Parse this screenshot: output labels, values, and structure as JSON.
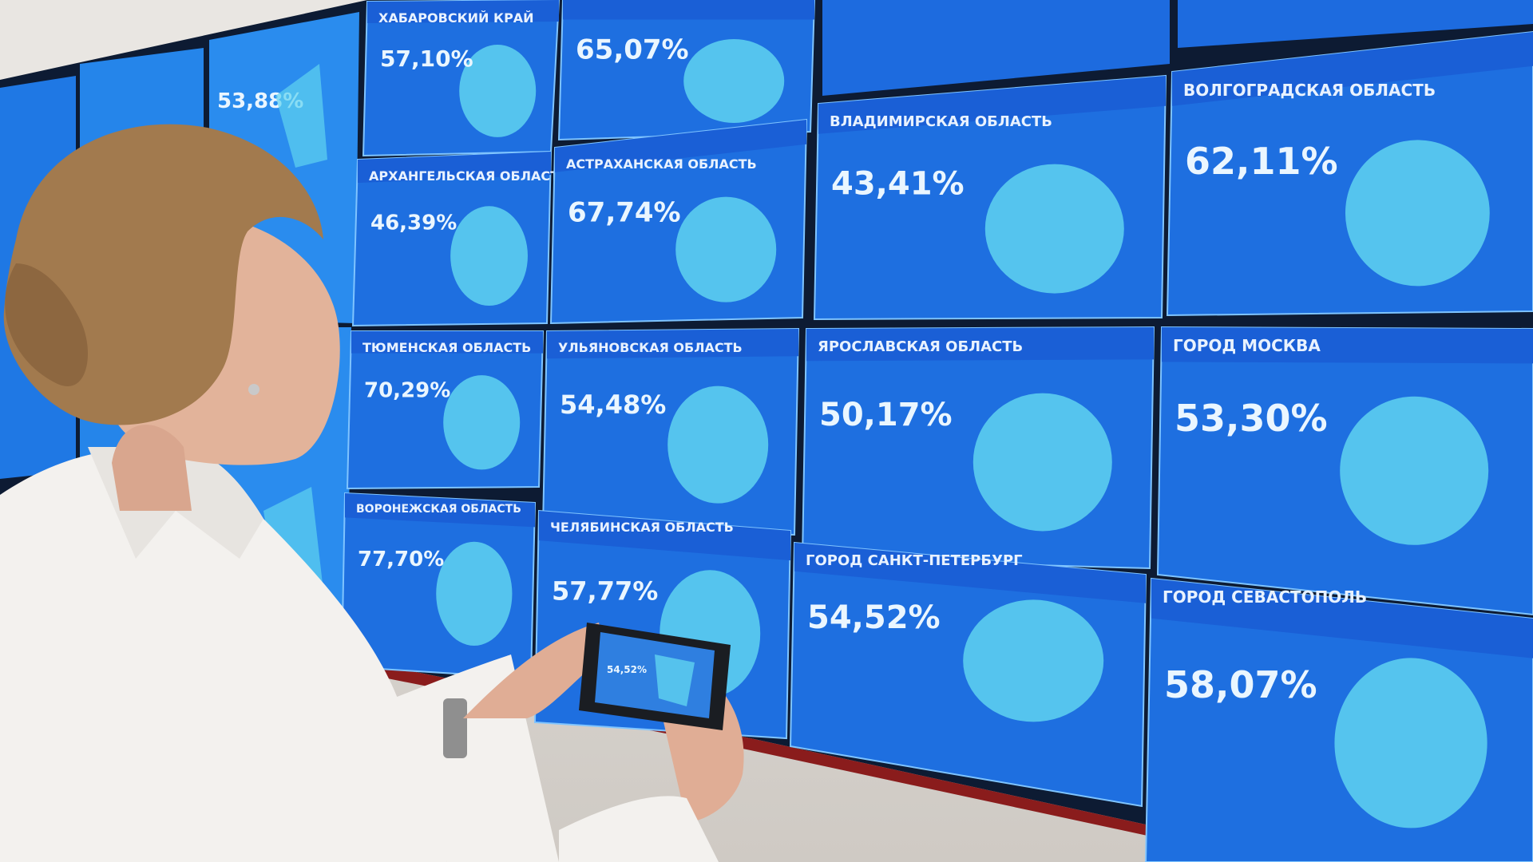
{
  "colors": {
    "screen": "#1e6fe0",
    "screen_header": "#1a5fd6",
    "map_fill": "#5fd3f0",
    "bezel": "#0d1b33",
    "wall_stripe": "#8a1c1c",
    "shirt": "#f3f1ee",
    "hair": "#a27a4e",
    "skin": "#e2b39a"
  },
  "panels": [
    {
      "title": "ХАБАРОВСКИЙ КРАЙ",
      "value": "57,10%"
    },
    {
      "title": "",
      "value": "65,07%"
    },
    {
      "title": "АРХАНГЕЛЬСКАЯ ОБЛАСТЬ",
      "value": "46,39%"
    },
    {
      "title": "АСТРАХАНСКАЯ ОБЛАСТЬ",
      "value": "67,74%"
    },
    {
      "title": "ВЛАДИМИРСКАЯ ОБЛАСТЬ",
      "value": "43,41%"
    },
    {
      "title": "ВОЛГОГРАДСКАЯ ОБЛАСТЬ",
      "value": "62,11%"
    },
    {
      "title": "ТЮМЕНСКАЯ ОБЛАСТЬ",
      "value": "70,29%"
    },
    {
      "title": "УЛЬЯНОВСКАЯ ОБЛАСТЬ",
      "value": "54,48%"
    },
    {
      "title": "ЯРОСЛАВСКАЯ ОБЛАСТЬ",
      "value": "50,17%"
    },
    {
      "title": "ГОРОД МОСКВА",
      "value": "53,30%"
    },
    {
      "title": "ВОРОНЕЖСКАЯ ОБЛАСТЬ",
      "value": "77,70%"
    },
    {
      "title": "ЧЕЛЯБИНСКАЯ ОБЛАСТЬ",
      "value": "57,77%"
    },
    {
      "title": "ГОРОД САНКТ-ПЕТЕРБУРГ",
      "value": "54,52%"
    },
    {
      "title": "ГОРОД СЕВАСТОПОЛЬ",
      "value": "58,07%"
    }
  ],
  "far_left_values": [
    "53,88%"
  ],
  "phone_screen_value": "54,52%"
}
